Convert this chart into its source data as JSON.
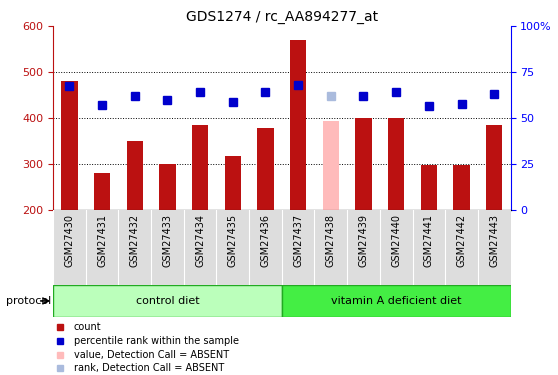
{
  "title": "GDS1274 / rc_AA894277_at",
  "samples": [
    "GSM27430",
    "GSM27431",
    "GSM27432",
    "GSM27433",
    "GSM27434",
    "GSM27435",
    "GSM27436",
    "GSM27437",
    "GSM27438",
    "GSM27439",
    "GSM27440",
    "GSM27441",
    "GSM27442",
    "GSM27443"
  ],
  "count_values": [
    480,
    280,
    350,
    300,
    385,
    318,
    378,
    570,
    393,
    400,
    400,
    297,
    297,
    385
  ],
  "count_absent": [
    false,
    false,
    false,
    false,
    false,
    false,
    false,
    false,
    true,
    false,
    false,
    false,
    false,
    false
  ],
  "rank_values": [
    470,
    428,
    448,
    440,
    456,
    436,
    456,
    472,
    448,
    448,
    456,
    426,
    430,
    452
  ],
  "rank_absent": [
    false,
    false,
    false,
    false,
    false,
    false,
    false,
    false,
    true,
    false,
    false,
    false,
    false,
    false
  ],
  "ylim_left": [
    200,
    600
  ],
  "yticks_left": [
    200,
    300,
    400,
    500,
    600
  ],
  "yticks_right_labels": [
    "0",
    "25",
    "50",
    "75",
    "100%"
  ],
  "ctrl_count": 7,
  "vit_count": 7,
  "group_labels": [
    "control diet",
    "vitamin A deficient diet"
  ],
  "group_color_light": "#BBFFBB",
  "group_color_dark": "#44EE44",
  "group_border_color": "#22AA22",
  "bar_color_present": "#BB1111",
  "bar_color_absent": "#FFBBBB",
  "rank_color_present": "#0000CC",
  "rank_color_absent": "#AABBDD",
  "bar_width": 0.5,
  "rank_marker_size": 6,
  "xlabel_area_bg": "#DDDDDD",
  "title_fontsize": 10,
  "axis_fontsize": 8,
  "legend_fontsize": 8,
  "protocol_label": "protocol"
}
